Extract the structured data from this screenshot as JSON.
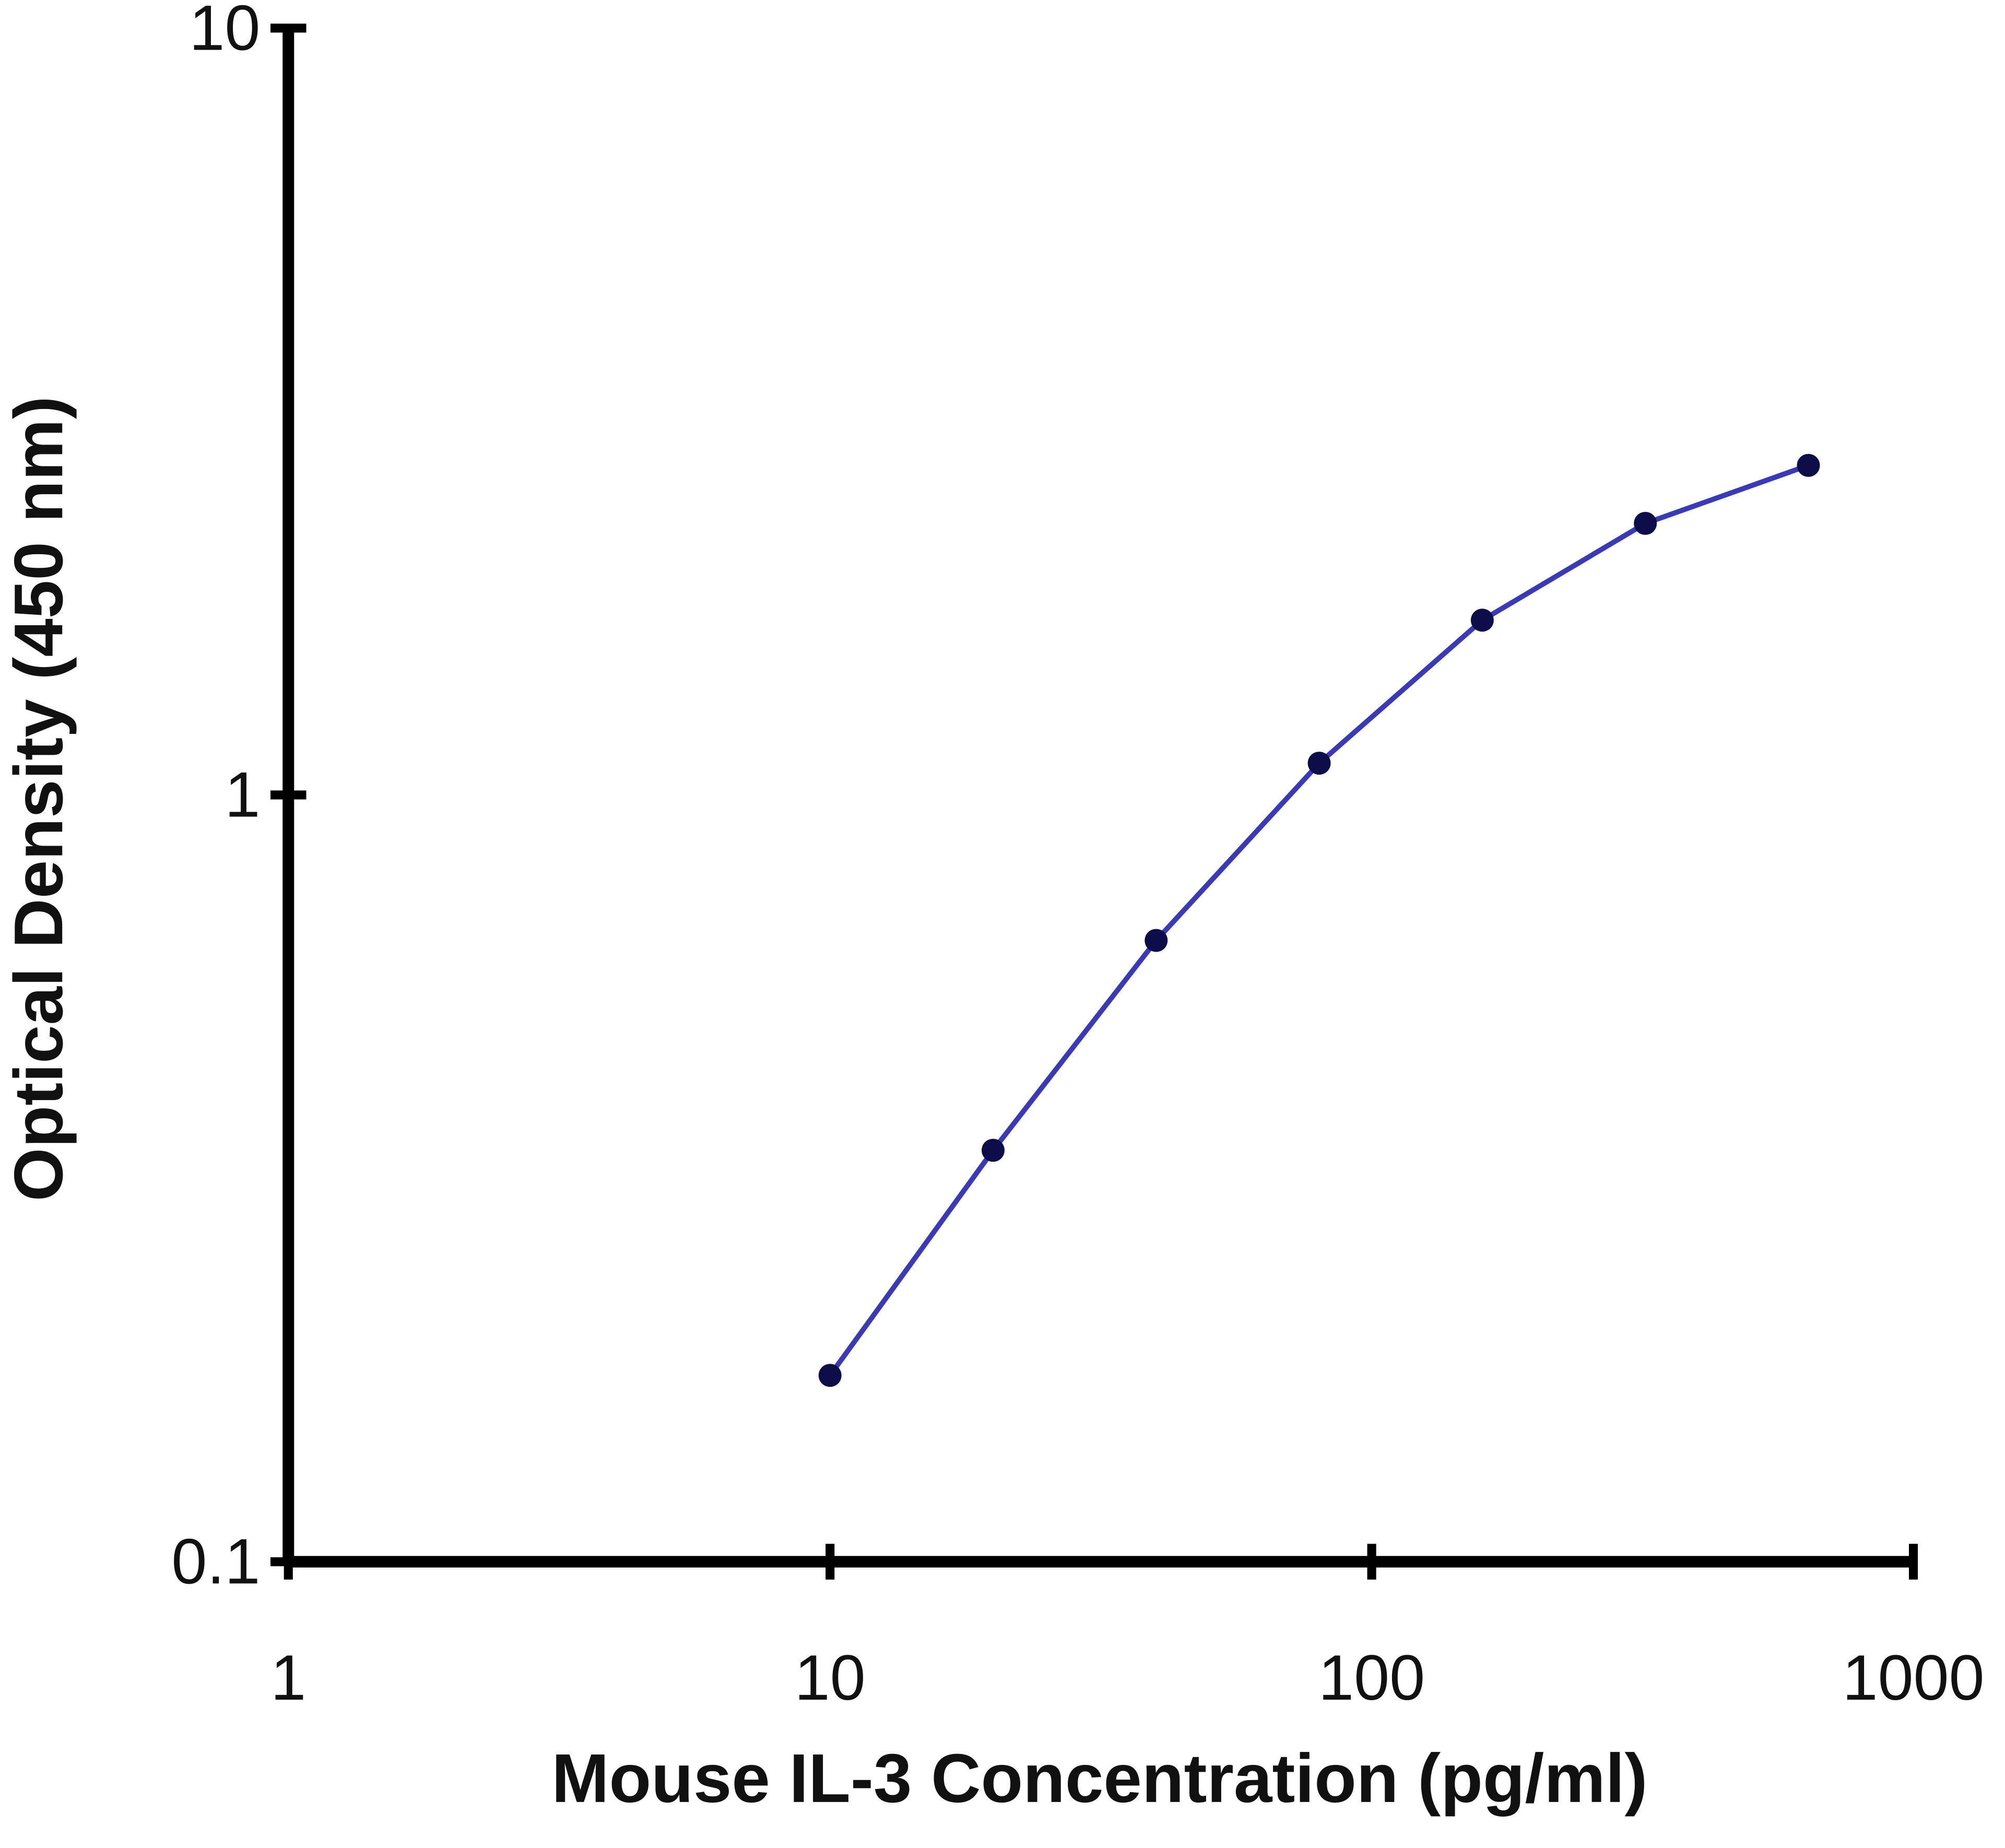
{
  "chart_data": {
    "type": "line",
    "x_label": "Mouse IL-3 Concentration (pg/ml)",
    "y_label": "Optical Density (450 nm)",
    "x": [
      10,
      20,
      40,
      80,
      160,
      320,
      640
    ],
    "values": [
      0.175,
      0.344,
      0.646,
      1.1,
      1.69,
      2.26,
      2.69
    ],
    "color": "#3a3ab4",
    "marker_color": "#0d0d4a",
    "x_log": true,
    "y_log": true,
    "xlim": [
      1,
      1000
    ],
    "xticks": [
      1,
      10,
      100,
      1000
    ],
    "ylim": [
      0.1,
      10
    ],
    "yticks": [
      0.1,
      1,
      10
    ]
  }
}
